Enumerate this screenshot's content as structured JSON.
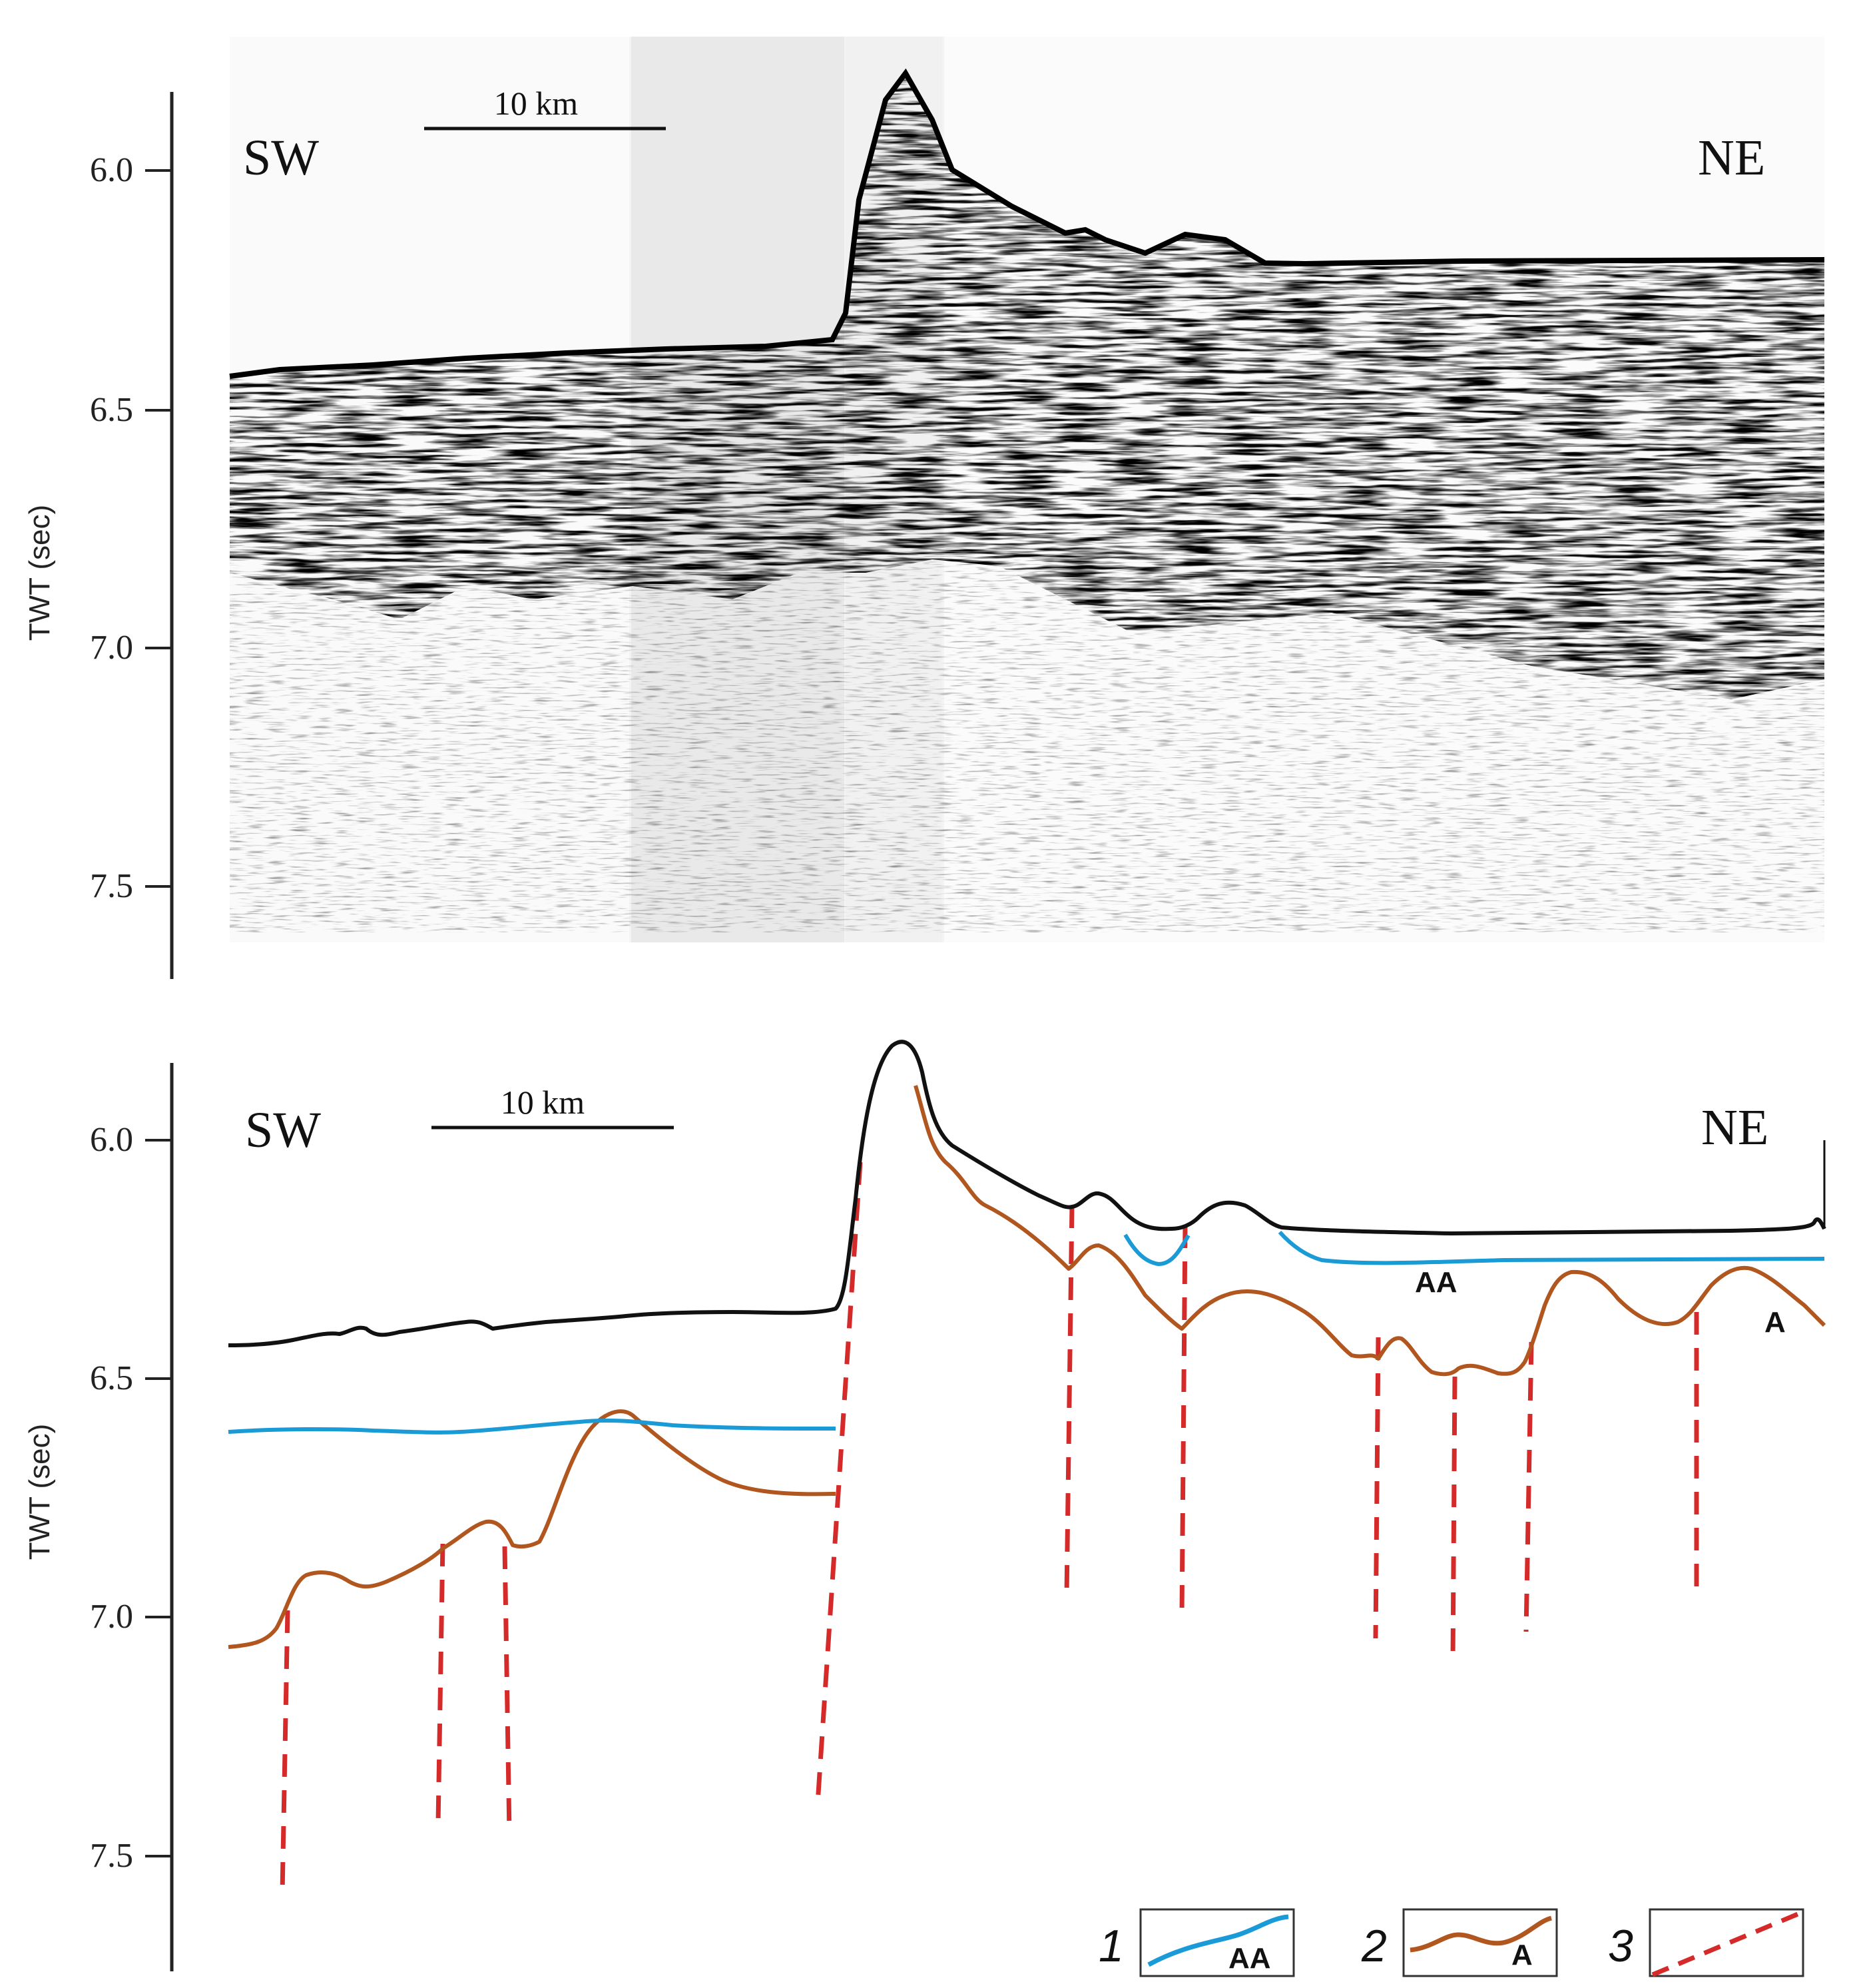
{
  "colors": {
    "seafloor": "#111111",
    "horizon_aa": "#1a9ad6",
    "horizon_a": "#b0561e",
    "fault": "#d42a2a",
    "axis": "#222222"
  },
  "seismic_panel": {
    "axis_title": "TWT (sec)",
    "ticks": [
      "6.0",
      "6.5",
      "7.0",
      "7.5"
    ],
    "direction_left": "SW",
    "direction_right": "NE",
    "scale_label": "10 km"
  },
  "interpretation_panel": {
    "axis_title": "TWT (sec)",
    "ticks": [
      "6.0",
      "6.5",
      "7.0",
      "7.5"
    ],
    "direction_left": "SW",
    "direction_right": "NE",
    "scale_label": "10 km",
    "horizon_aa_label": "AA",
    "horizon_a_label": "A"
  },
  "legend": [
    {
      "number": "1",
      "tag": "AA",
      "icon": "blue-horizon-line-icon"
    },
    {
      "number": "2",
      "tag": "A",
      "icon": "brown-horizon-line-icon"
    },
    {
      "number": "3",
      "tag": "",
      "icon": "red-dashed-fault-icon"
    }
  ]
}
